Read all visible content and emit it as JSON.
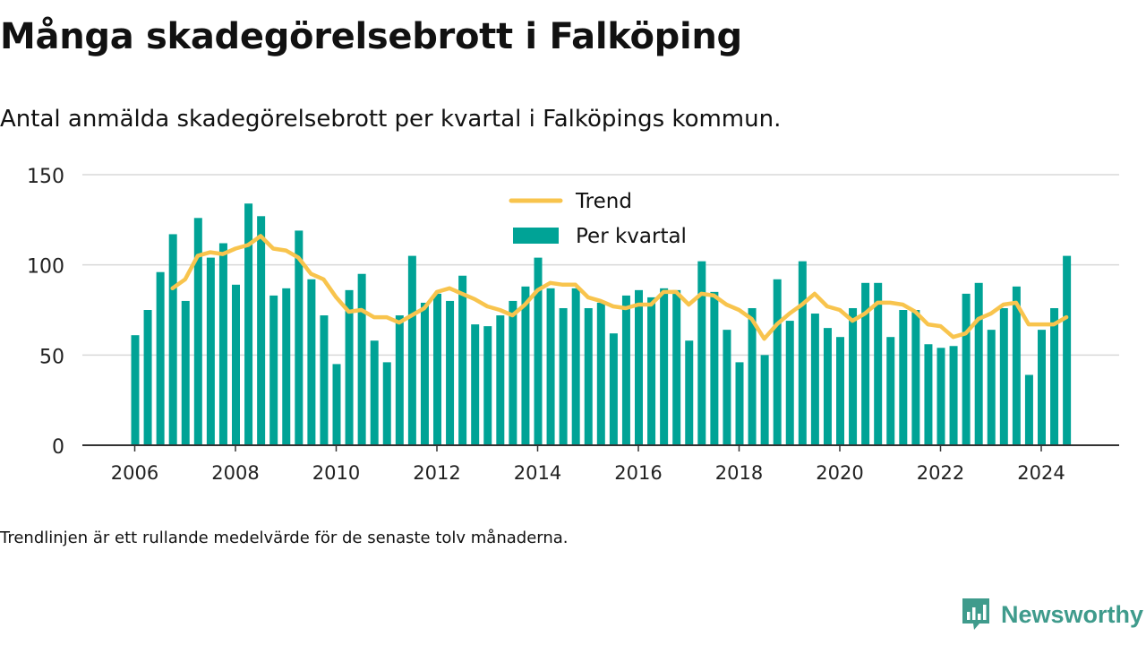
{
  "title": "Många skadegörelsebrott i Falköping",
  "subtitle": "Antal anmälda skadegörelsebrott per kvartal i Falköpings kommun.",
  "footnote": "Trendlinjen är ett rullande medelvärde för de senaste tolv månaderna.",
  "brand": "Newsworthy",
  "colors": {
    "bar": "#00a396",
    "trend": "#f8c44d",
    "grid": "#d9d9d9",
    "axis": "#333333",
    "brand": "#3f9b8c"
  },
  "chart_data": {
    "type": "bar",
    "y_range": [
      0,
      150
    ],
    "y_ticks": [
      0,
      50,
      100,
      150
    ],
    "x_ticks": [
      "2006",
      "2008",
      "2010",
      "2012",
      "2014",
      "2016",
      "2018",
      "2020",
      "2022",
      "2024"
    ],
    "grid": true,
    "legend_position": "top-center",
    "series": [
      {
        "name": "Per kvartal",
        "type": "bar",
        "x": [
          "2006 Q1",
          "2006 Q2",
          "2006 Q3",
          "2006 Q4",
          "2007 Q1",
          "2007 Q2",
          "2007 Q3",
          "2007 Q4",
          "2008 Q1",
          "2008 Q2",
          "2008 Q3",
          "2008 Q4",
          "2009 Q1",
          "2009 Q2",
          "2009 Q3",
          "2009 Q4",
          "2010 Q1",
          "2010 Q2",
          "2010 Q3",
          "2010 Q4",
          "2011 Q1",
          "2011 Q2",
          "2011 Q3",
          "2011 Q4",
          "2012 Q1",
          "2012 Q2",
          "2012 Q3",
          "2012 Q4",
          "2013 Q1",
          "2013 Q2",
          "2013 Q3",
          "2013 Q4",
          "2014 Q1",
          "2014 Q2",
          "2014 Q3",
          "2014 Q4",
          "2015 Q1",
          "2015 Q2",
          "2015 Q3",
          "2015 Q4",
          "2016 Q1",
          "2016 Q2",
          "2016 Q3",
          "2016 Q4",
          "2017 Q1",
          "2017 Q2",
          "2017 Q3",
          "2017 Q4",
          "2018 Q1",
          "2018 Q2",
          "2018 Q3",
          "2018 Q4",
          "2019 Q1",
          "2019 Q2",
          "2019 Q3",
          "2019 Q4",
          "2020 Q1",
          "2020 Q2",
          "2020 Q3",
          "2020 Q4",
          "2021 Q1",
          "2021 Q2",
          "2021 Q3",
          "2021 Q4",
          "2022 Q1",
          "2022 Q2",
          "2022 Q3",
          "2022 Q4",
          "2023 Q1",
          "2023 Q2",
          "2023 Q3",
          "2023 Q4",
          "2024 Q1",
          "2024 Q2",
          "2024 Q3"
        ],
        "values": [
          61,
          75,
          96,
          117,
          80,
          126,
          104,
          112,
          89,
          134,
          127,
          83,
          87,
          119,
          92,
          72,
          45,
          86,
          95,
          58,
          46,
          72,
          105,
          79,
          84,
          80,
          94,
          67,
          66,
          72,
          80,
          88,
          104,
          87,
          76,
          87,
          76,
          79,
          62,
          83,
          86,
          82,
          87,
          86,
          58,
          102,
          85,
          64,
          46,
          76,
          50,
          92,
          69,
          102,
          73,
          65,
          60,
          76,
          90,
          90,
          60,
          75,
          75,
          56,
          54,
          55,
          84,
          90,
          64,
          76,
          88,
          39,
          64,
          76,
          105
        ]
      },
      {
        "name": "Trend",
        "type": "line",
        "x": [
          "2006 Q4",
          "2007 Q1",
          "2007 Q2",
          "2007 Q3",
          "2007 Q4",
          "2008 Q1",
          "2008 Q2",
          "2008 Q3",
          "2008 Q4",
          "2009 Q1",
          "2009 Q2",
          "2009 Q3",
          "2009 Q4",
          "2010 Q1",
          "2010 Q2",
          "2010 Q3",
          "2010 Q4",
          "2011 Q1",
          "2011 Q2",
          "2011 Q3",
          "2011 Q4",
          "2012 Q1",
          "2012 Q2",
          "2012 Q3",
          "2012 Q4",
          "2013 Q1",
          "2013 Q2",
          "2013 Q3",
          "2013 Q4",
          "2014 Q1",
          "2014 Q2",
          "2014 Q3",
          "2014 Q4",
          "2015 Q1",
          "2015 Q2",
          "2015 Q3",
          "2015 Q4",
          "2016 Q1",
          "2016 Q2",
          "2016 Q3",
          "2016 Q4",
          "2017 Q1",
          "2017 Q2",
          "2017 Q3",
          "2017 Q4",
          "2018 Q1",
          "2018 Q2",
          "2018 Q3",
          "2018 Q4",
          "2019 Q1",
          "2019 Q2",
          "2019 Q3",
          "2019 Q4",
          "2020 Q1",
          "2020 Q2",
          "2020 Q3",
          "2020 Q4",
          "2021 Q1",
          "2021 Q2",
          "2021 Q3",
          "2021 Q4",
          "2022 Q1",
          "2022 Q2",
          "2022 Q3",
          "2022 Q4",
          "2023 Q1",
          "2023 Q2",
          "2023 Q3",
          "2023 Q4",
          "2024 Q1",
          "2024 Q2",
          "2024 Q3"
        ],
        "values": [
          87,
          92,
          105,
          107,
          106,
          109,
          111,
          116,
          109,
          108,
          104,
          95,
          92,
          82,
          74,
          75,
          71,
          71,
          68,
          72,
          76,
          85,
          87,
          84,
          81,
          77,
          75,
          72,
          78,
          86,
          90,
          89,
          89,
          82,
          80,
          77,
          76,
          78,
          78,
          85,
          85,
          78,
          84,
          83,
          78,
          75,
          70,
          59,
          67,
          73,
          78,
          84,
          77,
          75,
          69,
          73,
          79,
          79,
          78,
          74,
          67,
          66,
          60,
          62,
          70,
          73,
          78,
          79,
          67,
          67,
          67,
          71
        ]
      }
    ]
  }
}
